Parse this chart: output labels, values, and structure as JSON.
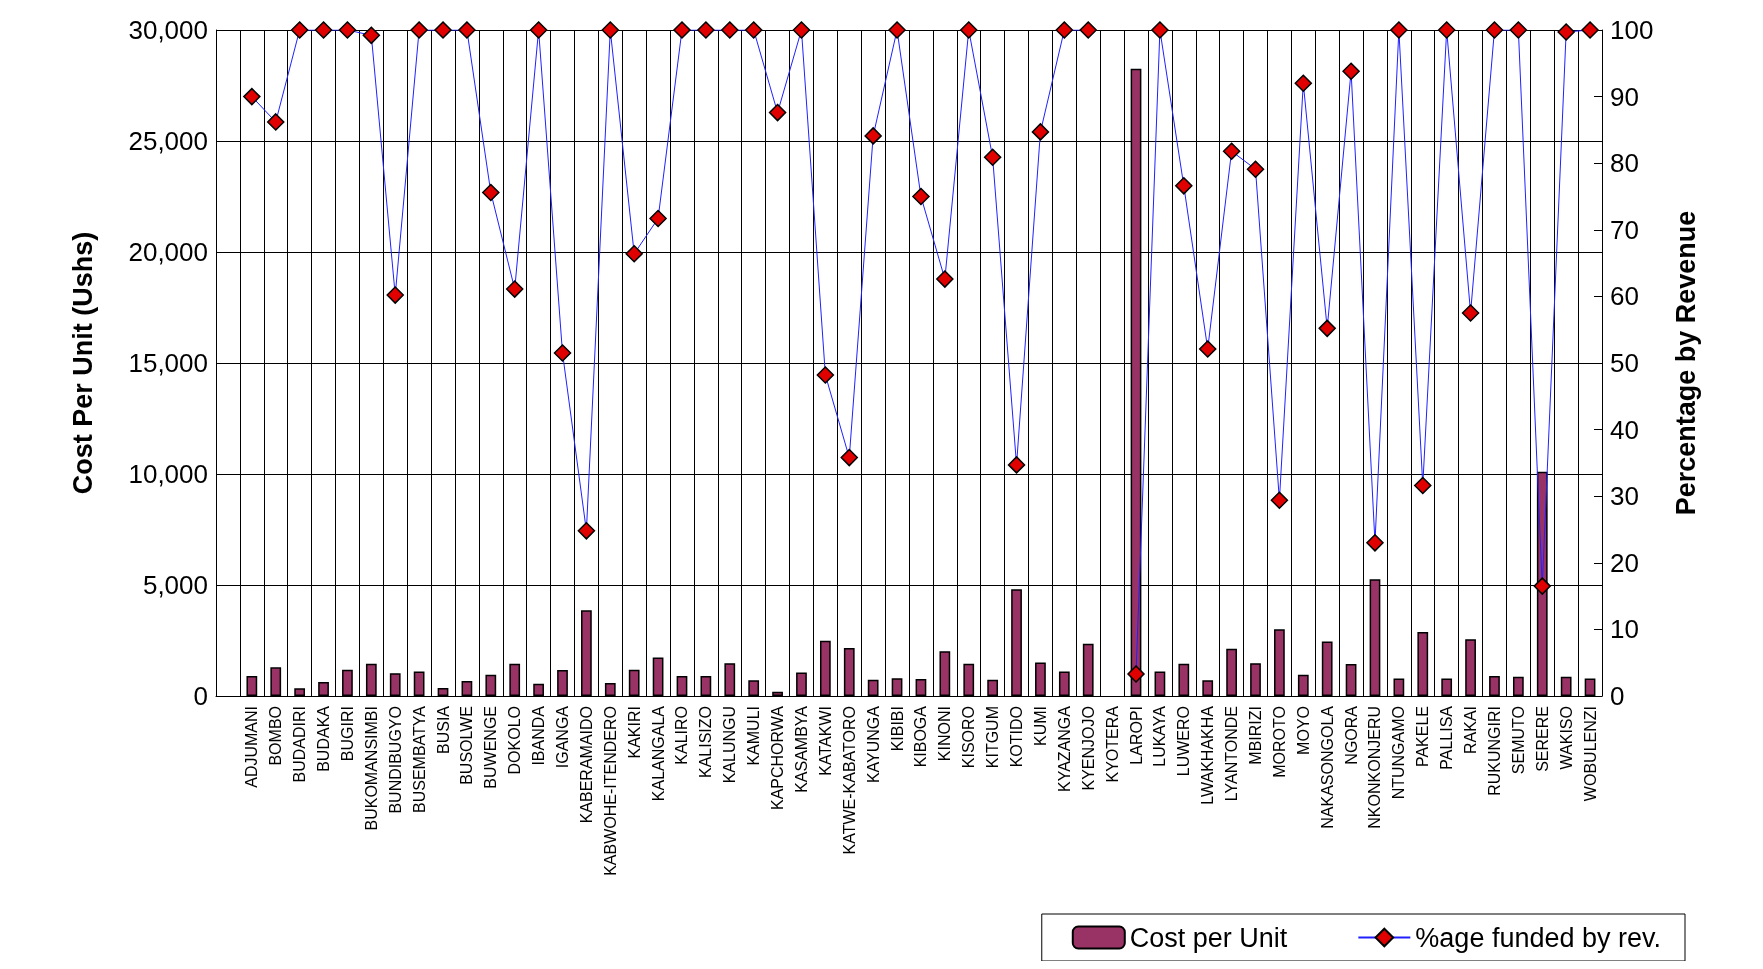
{
  "chart_data": {
    "type": "bar",
    "categories": [
      null,
      "ADJUMANI",
      "BOMBO",
      "BUDADIRI",
      "BUDAKA",
      "BUGIRI",
      "BUKOMANSIMBI",
      "BUNDIBUGYO",
      "BUSEMBATYA",
      "BUSIA",
      "BUSOLWE",
      "BUWENGE",
      "DOKOLO",
      "IBANDA",
      "IGANGA",
      "KABERAMAIDO",
      "KABWOHE-ITENDERO",
      "KAKIRI",
      "KALANGALA",
      "KALIRO",
      "KALISIZO",
      "KALUNGU",
      "KAMULI",
      "KAPCHORWA",
      "KASAMBYA",
      "KATAKWI",
      "KATWE-KABATORO",
      "KAYUNGA",
      "KIBIBI",
      "KIBOGA",
      "KINONI",
      "KISORO",
      "KITGUM",
      "KOTIDO",
      "KUMI",
      "KYAZANGA",
      "KYENJOJO",
      "KYOTERA",
      "LAROPI",
      "LUKAYA",
      "LUWERO",
      "LWAKHAKHA",
      "LYANTONDE",
      "MBIRIZI",
      "MOROTO",
      "MOYO",
      "NAKASONGOLA",
      "NGORA",
      "NKONKONJERU",
      "NTUNGAMO",
      "PAKELE",
      "PALLISA",
      "RAKAI",
      "RUKUNGIRI",
      "SEMUTO",
      "SERERE",
      "WAKISO",
      "WOBULENZI"
    ],
    "series": [
      {
        "name": "Cost per Unit",
        "color": "#993366",
        "values": [
          null,
          900,
          1290,
          350,
          630,
          1180,
          1450,
          1030,
          1100,
          360,
          680,
          960,
          1450,
          550,
          1170,
          3860,
          580,
          1180,
          1730,
          900,
          900,
          1480,
          710,
          190,
          1060,
          2490,
          2160,
          730,
          800,
          770,
          2020,
          1450,
          730,
          4810,
          1510,
          1100,
          2350,
          null,
          28250,
          1100,
          1450,
          710,
          2130,
          1480,
          3010,
          960,
          2460,
          1440,
          5260,
          790,
          2880,
          790,
          2560,
          900,
          870,
          10100,
          870,
          790
        ]
      },
      {
        "name": "%age funded by rev.",
        "type": "line",
        "axis": "y2",
        "color": "#e00000",
        "marker": "diamond",
        "values": [
          null,
          90,
          86.2,
          100,
          100,
          100,
          99.2,
          60.2,
          100,
          100,
          100,
          75.6,
          61.1,
          100,
          51.5,
          24.8,
          100,
          66.4,
          71.7,
          100,
          100,
          100,
          100,
          87.6,
          100,
          48.2,
          35.8,
          84.1,
          100,
          75,
          62.6,
          100,
          80.9,
          34.7,
          84.7,
          100,
          100,
          null,
          3.3,
          100,
          76.6,
          52.1,
          81.8,
          79.1,
          29.4,
          92,
          55.2,
          93.8,
          23,
          100,
          31.6,
          100,
          57.5,
          100,
          100,
          16.5,
          99.7,
          100
        ]
      }
    ],
    "ylabel": "Cost Per Unit (Ushs)",
    "y2label": "Percentage by Revenue",
    "ylim": [
      0,
      30000
    ],
    "yticks": [
      {
        "value": 0,
        "label": "0"
      },
      {
        "value": 5000,
        "label": "5,000"
      },
      {
        "value": 10000,
        "label": "10,000"
      },
      {
        "value": 15000,
        "label": "15,000"
      },
      {
        "value": 20000,
        "label": "20,000"
      },
      {
        "value": 25000,
        "label": "25,000"
      },
      {
        "value": 30000,
        "label": "30,000"
      }
    ],
    "y2lim": [
      0,
      100
    ],
    "y2ticks": [
      0,
      10,
      20,
      30,
      40,
      50,
      60,
      70,
      80,
      90,
      100
    ],
    "grid": true,
    "legend": "bottom right"
  }
}
